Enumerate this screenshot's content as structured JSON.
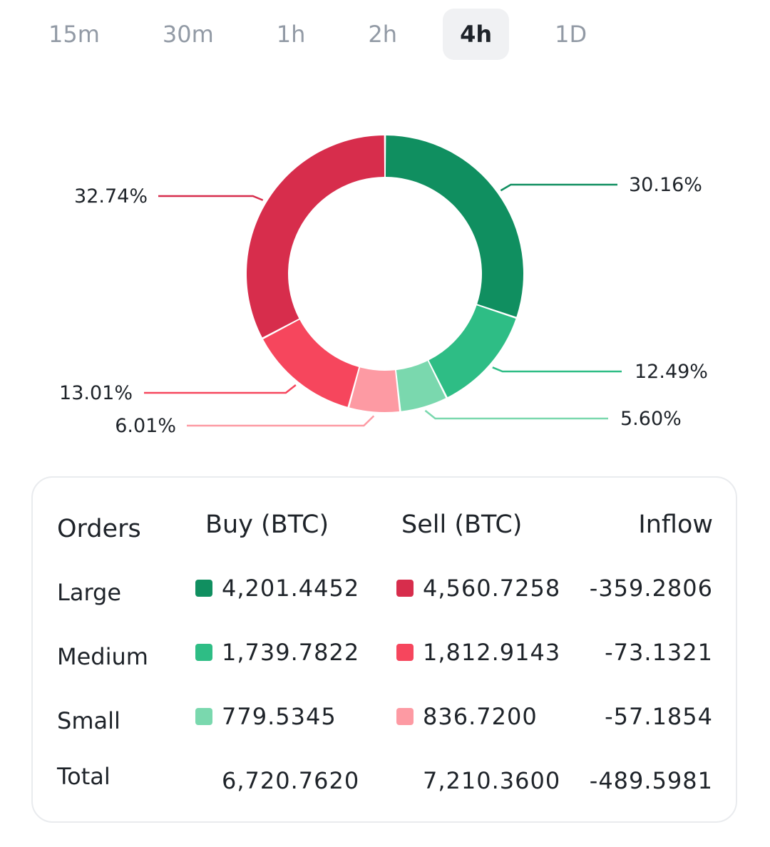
{
  "tabs": [
    {
      "label": "15m",
      "active": false
    },
    {
      "label": "30m",
      "active": false
    },
    {
      "label": "1h",
      "active": false
    },
    {
      "label": "2h",
      "active": false
    },
    {
      "label": "4h",
      "active": true
    },
    {
      "label": "1D",
      "active": false
    }
  ],
  "colors": {
    "buy_large": "#108f60",
    "buy_medium": "#2ebd85",
    "buy_small": "#7ad8ae",
    "sell_large": "#d72d4c",
    "sell_medium": "#f6465d",
    "sell_small": "#fd9aa3"
  },
  "chart_data": {
    "type": "pie",
    "style": "donut",
    "slices": [
      {
        "label": "30.16%",
        "value": 30.16,
        "color": "#108f60"
      },
      {
        "label": "12.49%",
        "value": 12.49,
        "color": "#2ebd85"
      },
      {
        "label": "5.60%",
        "value": 5.6,
        "color": "#7ad8ae"
      },
      {
        "label": "6.01%",
        "value": 6.01,
        "color": "#fd9aa3"
      },
      {
        "label": "13.01%",
        "value": 13.01,
        "color": "#f6465d"
      },
      {
        "label": "32.74%",
        "value": 32.74,
        "color": "#d72d4c"
      }
    ]
  },
  "table": {
    "headers": {
      "orders": "Orders",
      "buy": "Buy (BTC)",
      "sell": "Sell (BTC)",
      "inflow": "Inflow"
    },
    "rows": [
      {
        "label": "Large",
        "buy": "4,201.4452",
        "sell": "4,560.7258",
        "inflow": "-359.2806",
        "buy_color": "#108f60",
        "sell_color": "#d72d4c"
      },
      {
        "label": "Medium",
        "buy": "1,739.7822",
        "sell": "1,812.9143",
        "inflow": "-73.1321",
        "buy_color": "#2ebd85",
        "sell_color": "#f6465d"
      },
      {
        "label": "Small",
        "buy": "779.5345",
        "sell": "836.7200",
        "inflow": "-57.1854",
        "buy_color": "#7ad8ae",
        "sell_color": "#fd9aa3"
      }
    ],
    "total": {
      "label": "Total",
      "buy": "6,720.7620",
      "sell": "7,210.3600",
      "inflow": "-489.5981"
    }
  }
}
